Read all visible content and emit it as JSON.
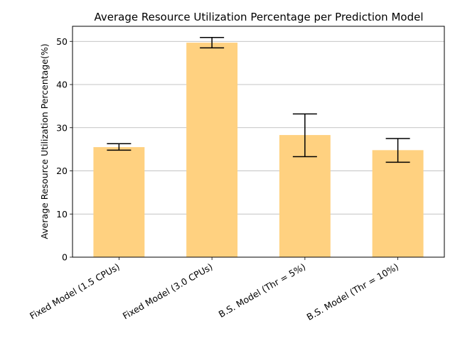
{
  "chart_data": {
    "type": "bar",
    "title": "Average Resource Utilization Percentage per Prediction Model",
    "xlabel": "",
    "ylabel": "Average Resource Utilization Percentage(%)",
    "categories": [
      "Fixed Model (1.5 CPUs)",
      "Fixed Model (3.0 CPUs)",
      "B.S. Model (Thr = 5%)",
      "B.S. Model (Thr = 10%)"
    ],
    "values": [
      25.5,
      49.7,
      28.3,
      24.8
    ],
    "error_low": [
      24.8,
      48.5,
      23.3,
      22.0
    ],
    "error_high": [
      26.3,
      50.9,
      33.2,
      27.5
    ],
    "ylim": [
      0,
      53.5
    ],
    "yticks": [
      0,
      10,
      20,
      30,
      40,
      50
    ],
    "grid": "y",
    "colors": {
      "bar": "#ffd180",
      "error": "#000000",
      "grid": "#b0b0b0"
    }
  }
}
